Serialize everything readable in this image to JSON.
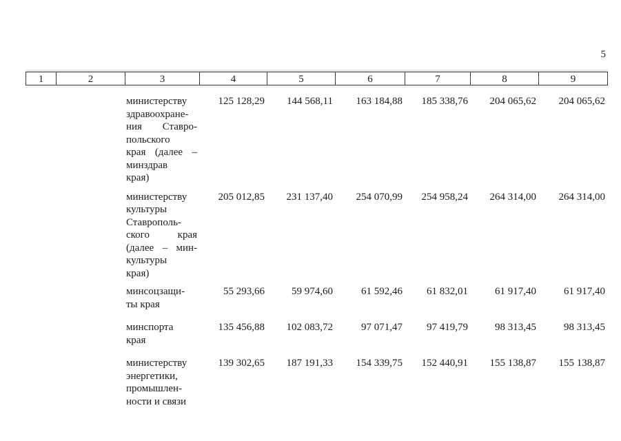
{
  "page": {
    "number": "5"
  },
  "table": {
    "header": [
      "1",
      "2",
      "3",
      "4",
      "5",
      "6",
      "7",
      "8",
      "9"
    ],
    "rows": [
      {
        "name_lines": [
          "министерству",
          "здравоохране-",
          "ния Ставро-",
          "польского",
          "края (далее –",
          "минздрав",
          "края)"
        ],
        "justify": [
          2,
          4
        ],
        "values": [
          "125 128,29",
          "144 568,11",
          "163 184,88",
          "185 338,76",
          "204 065,62",
          "204 065,62"
        ]
      },
      {
        "name_lines": [
          "министерству",
          "культуры",
          "Ставрополь-",
          "ского края",
          "(далее – мин-",
          "культуры",
          "края)"
        ],
        "justify": [
          3,
          4
        ],
        "values": [
          "205 012,85",
          "231 137,40",
          "254 070,99",
          "254 958,24",
          "264 314,00",
          "264 314,00"
        ]
      },
      {
        "name_lines": [
          "минсоцзащи-",
          "ты края"
        ],
        "justify": [],
        "values": [
          "55 293,66",
          "59 974,60",
          "61 592,46",
          "61 832,01",
          "61 917,40",
          "61 917,40"
        ]
      },
      {
        "name_lines": [
          "минспорта",
          "края"
        ],
        "justify": [],
        "values": [
          "135 456,88",
          "102 083,72",
          "97 071,47",
          "97 419,79",
          "98 313,45",
          "98 313,45"
        ]
      },
      {
        "name_lines": [
          "министерству",
          "энергетики,",
          "промышлен-",
          "ности и связи"
        ],
        "justify": [],
        "values": [
          "139 302,65",
          "187 191,33",
          "154 339,75",
          "152 440,91",
          "155 138,87",
          "155 138,87"
        ]
      }
    ]
  }
}
